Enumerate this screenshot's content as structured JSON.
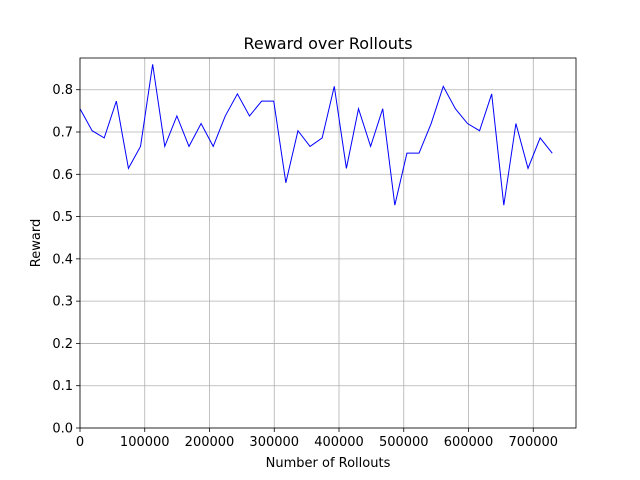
{
  "chart_data": {
    "type": "line",
    "title": "Reward over Rollouts",
    "xlabel": "Number of Rollouts",
    "ylabel": "Reward",
    "xlim": [
      0,
      766000
    ],
    "ylim": [
      0,
      0.875
    ],
    "grid": true,
    "line_color": "#0000ff",
    "x_ticks": [
      0,
      100000,
      200000,
      300000,
      400000,
      500000,
      600000,
      700000
    ],
    "x_tick_labels": [
      "0",
      "100000",
      "200000",
      "300000",
      "400000",
      "500000",
      "600000",
      "700000"
    ],
    "y_ticks": [
      0.0,
      0.1,
      0.2,
      0.3,
      0.4,
      0.5,
      0.6,
      0.7,
      0.8
    ],
    "y_tick_labels": [
      "0.0",
      "0.1",
      "0.2",
      "0.3",
      "0.4",
      "0.5",
      "0.6",
      "0.7",
      "0.8"
    ],
    "series": [
      {
        "x": [
          0,
          18700,
          37400,
          56100,
          74800,
          93500,
          112200,
          130900,
          149600,
          168300,
          187000,
          205700,
          224400,
          243100,
          261800,
          280500,
          299200,
          317900,
          336600,
          355300,
          374000,
          392700,
          411400,
          430100,
          448800,
          467500,
          486200,
          504900,
          523600,
          542300,
          561000,
          579700,
          598400,
          617100,
          635800,
          654500,
          673200,
          691900,
          710600,
          729300
        ],
        "y": [
          0.755,
          0.703,
          0.686,
          0.773,
          0.614,
          0.666,
          0.86,
          0.666,
          0.738,
          0.666,
          0.72,
          0.666,
          0.738,
          0.79,
          0.738,
          0.773,
          0.773,
          0.58,
          0.703,
          0.666,
          0.686,
          0.808,
          0.614,
          0.755,
          0.666,
          0.755,
          0.527,
          0.65,
          0.65,
          0.72,
          0.808,
          0.755,
          0.72,
          0.703,
          0.79,
          0.527,
          0.72,
          0.614,
          0.686,
          0.65
        ]
      }
    ]
  }
}
